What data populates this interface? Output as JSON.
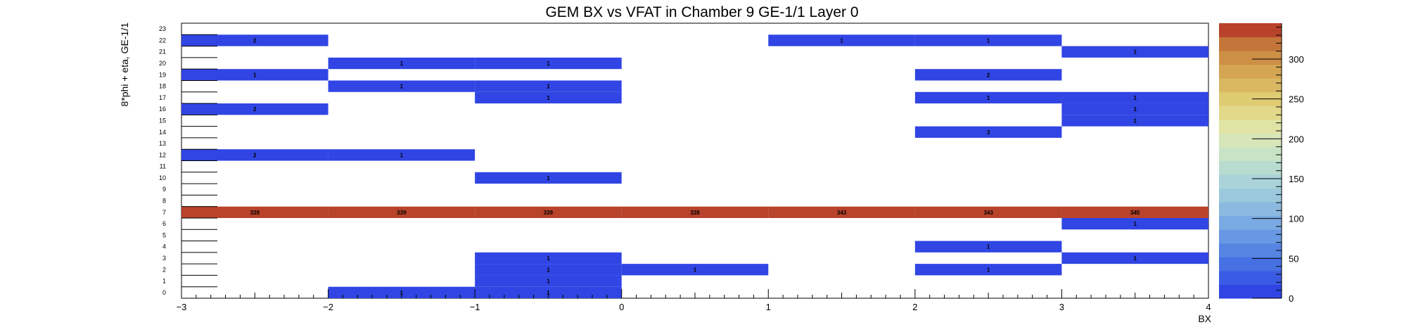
{
  "chart_data": {
    "type": "heatmap",
    "title": "GEM BX vs VFAT in Chamber 9 GE-1/1 Layer 0",
    "xlabel": "BX",
    "ylabel": "8*phi + eta, GE-1/1",
    "xlim": [
      -3,
      4
    ],
    "ylim": [
      0,
      24
    ],
    "x_ticks": [
      "−3",
      "−2",
      "−1",
      "0",
      "1",
      "2",
      "3",
      "4"
    ],
    "y_ticks": [
      "0",
      "1",
      "2",
      "3",
      "4",
      "5",
      "6",
      "7",
      "8",
      "9",
      "10",
      "11",
      "12",
      "13",
      "14",
      "15",
      "16",
      "17",
      "18",
      "19",
      "20",
      "21",
      "22",
      "23"
    ],
    "colorbar": {
      "min": 0,
      "max": 345,
      "ticks": [
        "0",
        "50",
        "100",
        "150",
        "200",
        "250",
        "300"
      ]
    },
    "cells": [
      {
        "x": -2.5,
        "y": 22,
        "value": 2
      },
      {
        "x": 1.5,
        "y": 22,
        "value": 1
      },
      {
        "x": 2.5,
        "y": 22,
        "value": 1
      },
      {
        "x": 3.5,
        "y": 21,
        "value": 1
      },
      {
        "x": -1.5,
        "y": 20,
        "value": 1
      },
      {
        "x": -0.5,
        "y": 20,
        "value": 1
      },
      {
        "x": -2.5,
        "y": 19,
        "value": 1
      },
      {
        "x": 2.5,
        "y": 19,
        "value": 2
      },
      {
        "x": -1.5,
        "y": 18,
        "value": 1
      },
      {
        "x": -0.5,
        "y": 18,
        "value": 1
      },
      {
        "x": -0.5,
        "y": 17,
        "value": 1
      },
      {
        "x": 2.5,
        "y": 17,
        "value": 1
      },
      {
        "x": 3.5,
        "y": 17,
        "value": 1
      },
      {
        "x": -2.5,
        "y": 16,
        "value": 2
      },
      {
        "x": 3.5,
        "y": 16,
        "value": 1
      },
      {
        "x": 3.5,
        "y": 15,
        "value": 1
      },
      {
        "x": 2.5,
        "y": 14,
        "value": 3
      },
      {
        "x": -2.5,
        "y": 12,
        "value": 2
      },
      {
        "x": -1.5,
        "y": 12,
        "value": 1
      },
      {
        "x": -0.5,
        "y": 10,
        "value": 1
      },
      {
        "x": -2.5,
        "y": 7,
        "value": 339
      },
      {
        "x": -1.5,
        "y": 7,
        "value": 339
      },
      {
        "x": -0.5,
        "y": 7,
        "value": 339
      },
      {
        "x": 0.5,
        "y": 7,
        "value": 338
      },
      {
        "x": 1.5,
        "y": 7,
        "value": 343
      },
      {
        "x": 2.5,
        "y": 7,
        "value": 343
      },
      {
        "x": 3.5,
        "y": 7,
        "value": 345
      },
      {
        "x": 3.5,
        "y": 6,
        "value": 1
      },
      {
        "x": 2.5,
        "y": 4,
        "value": 1
      },
      {
        "x": -0.5,
        "y": 3,
        "value": 1
      },
      {
        "x": 3.5,
        "y": 3,
        "value": 1
      },
      {
        "x": -0.5,
        "y": 2,
        "value": 1
      },
      {
        "x": 0.5,
        "y": 2,
        "value": 1
      },
      {
        "x": 2.5,
        "y": 2,
        "value": 1
      },
      {
        "x": -0.5,
        "y": 1,
        "value": 1
      },
      {
        "x": -1.5,
        "y": 0,
        "value": 1
      },
      {
        "x": -0.5,
        "y": 0,
        "value": 1
      }
    ],
    "colors": {
      "low": "#3045e3",
      "high": "#b9422a"
    }
  }
}
